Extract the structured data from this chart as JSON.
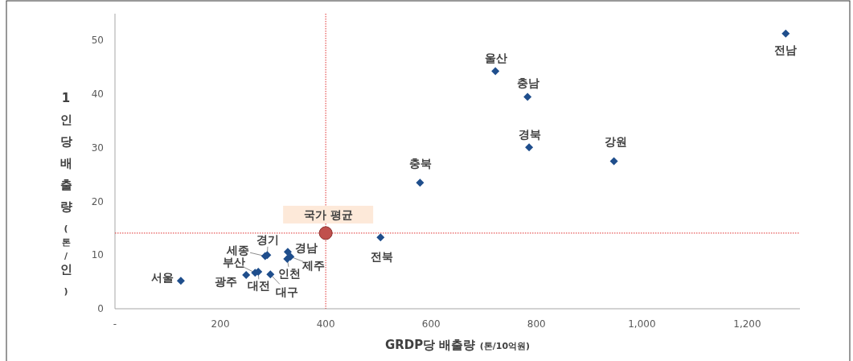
{
  "chart_data": {
    "type": "scatter",
    "xlabel": "GRDP당 배출량 (톤/10억원)",
    "ylabel": "1인당 배출량 (톤/인)",
    "x": [
      125,
      249,
      266,
      272,
      295,
      285,
      289,
      328,
      327,
      333,
      504,
      579,
      722,
      783,
      786,
      947,
      1273
    ],
    "series": [
      {
        "color": "#1f4e8c",
        "marker": "diamond",
        "values": [
          5.2,
          6.3,
          6.7,
          6.9,
          6.4,
          9.8,
          10.0,
          10.6,
          9.3,
          9.7,
          13.3,
          23.5,
          44.3,
          39.5,
          30.1,
          27.5,
          51.3
        ]
      },
      {
        "color": "#c0504d",
        "marker": "circle",
        "x": [
          400
        ],
        "values": [
          14.1
        ]
      }
    ],
    "ref_lines": [
      {
        "axis": "x",
        "value": 400,
        "color": "#e03030",
        "line_style": "dotted"
      },
      {
        "axis": "y",
        "value": 14.1,
        "color": "#e03030",
        "line_style": "dotted"
      }
    ],
    "annotations": [
      {
        "text": "서울",
        "x": 125,
        "y": 5.2
      },
      {
        "text": "광주",
        "x": 249,
        "y": 6.3
      },
      {
        "text": "부산",
        "x": 266,
        "y": 6.7
      },
      {
        "text": "대전",
        "x": 272,
        "y": 6.9
      },
      {
        "text": "대구",
        "x": 295,
        "y": 6.4
      },
      {
        "text": "세종",
        "x": 285,
        "y": 9.8
      },
      {
        "text": "경기",
        "x": 289,
        "y": 10.0
      },
      {
        "text": "경남",
        "x": 328,
        "y": 10.6
      },
      {
        "text": "인천",
        "x": 327,
        "y": 9.3
      },
      {
        "text": "제주",
        "x": 333,
        "y": 9.7
      },
      {
        "text": "전북",
        "x": 504,
        "y": 13.3
      },
      {
        "text": "충북",
        "x": 579,
        "y": 23.5
      },
      {
        "text": "울산",
        "x": 722,
        "y": 44.3
      },
      {
        "text": "충남",
        "x": 783,
        "y": 39.5
      },
      {
        "text": "경북",
        "x": 786,
        "y": 30.1
      },
      {
        "text": "강원",
        "x": 947,
        "y": 27.5
      },
      {
        "text": "전남",
        "x": 1273,
        "y": 51.3
      },
      {
        "text": "국가 평균",
        "x": 400,
        "y": 14.1
      }
    ],
    "xlim": [
      0,
      1300
    ],
    "xticks": [
      {
        "value": 0,
        "label": "-"
      },
      200,
      400,
      600,
      800,
      {
        "value": 1000,
        "label": "1,000"
      },
      {
        "value": 1200,
        "label": "1,200"
      }
    ],
    "ylim": [
      0,
      55
    ],
    "yticks": [
      0,
      10,
      20,
      30,
      40,
      50
    ],
    "grid": false
  }
}
